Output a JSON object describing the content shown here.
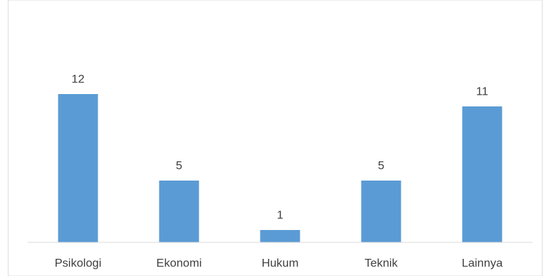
{
  "chart_data": {
    "type": "bar",
    "categories": [
      "Psikologi",
      "Ekonomi",
      "Hukum",
      "Teknik",
      "Lainnya"
    ],
    "values": [
      12,
      5,
      1,
      5,
      11
    ],
    "color": "#5b9bd5"
  }
}
